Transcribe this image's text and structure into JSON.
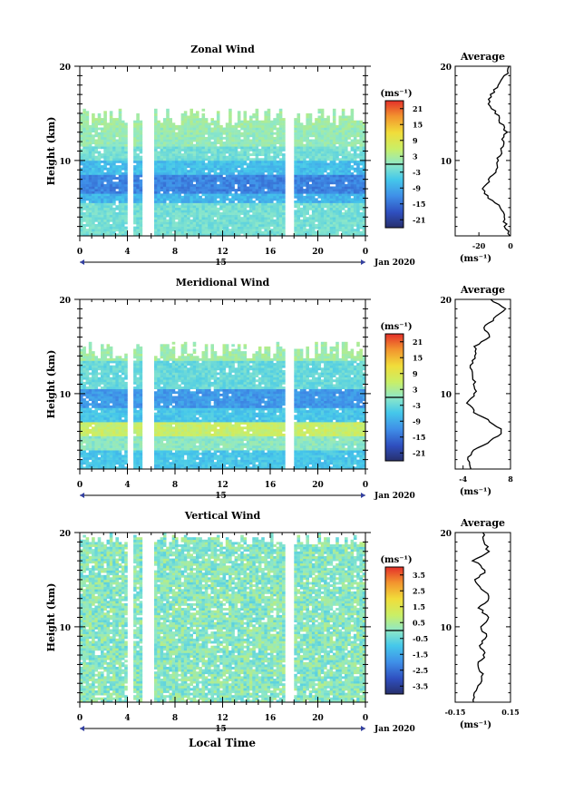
{
  "figure": {
    "xlabel": "Local Time",
    "date_label": "Jan 2020",
    "day_label": "15",
    "xticks": [
      "0",
      "4",
      "8",
      "12",
      "16",
      "20",
      "0"
    ],
    "ylabel": "Height (km)",
    "yticks": [
      "10",
      "20"
    ],
    "unit_label": "(ms⁻¹)",
    "avg_title": "Average",
    "avg_xunit": "(ms⁻¹)"
  },
  "chart_data": [
    {
      "type": "heatmap",
      "title": "Zonal Wind",
      "xlabel": "Local Time",
      "ylabel": "Height (km)",
      "xlim": [
        0,
        24
      ],
      "ylim": [
        2,
        20
      ],
      "colorbar_ticks": [
        "21",
        "15",
        "9",
        "3",
        "-3",
        "-9",
        "-15",
        "-21"
      ],
      "colorbar_range": [
        -24,
        24
      ],
      "gaps_hours": [
        [
          4.0,
          4.6
        ],
        [
          5.3,
          6.3
        ],
        [
          17.2,
          18.0
        ]
      ],
      "layers": [
        {
          "bottom": 2.0,
          "top": 5.5,
          "value": -2
        },
        {
          "bottom": 5.5,
          "top": 6.5,
          "value": -8
        },
        {
          "bottom": 6.5,
          "top": 8.5,
          "value": -13
        },
        {
          "bottom": 8.5,
          "top": 10.0,
          "value": -7
        },
        {
          "bottom": 10.0,
          "top": 11.5,
          "value": -2
        },
        {
          "bottom": 11.5,
          "top": 13.5,
          "value": 1
        }
      ],
      "average_profile": {
        "xlim": [
          -35,
          0
        ],
        "xticks": [
          "-20",
          "0"
        ],
        "height": [
          2,
          3,
          4,
          5,
          6,
          7,
          8,
          9,
          10,
          11,
          12,
          13,
          14,
          15,
          16,
          17,
          18,
          19,
          20
        ],
        "value": [
          -1,
          -3,
          -4,
          -6,
          -14,
          -17,
          -13,
          -9,
          -8,
          -6,
          -5,
          -3,
          -6,
          -9,
          -14,
          -12,
          -8,
          -3,
          -1
        ]
      }
    },
    {
      "type": "heatmap",
      "title": "Meridional Wind",
      "xlabel": "Local Time",
      "ylabel": "Height (km)",
      "xlim": [
        0,
        24
      ],
      "ylim": [
        2,
        20
      ],
      "colorbar_ticks": [
        "21",
        "15",
        "9",
        "3",
        "-3",
        "-9",
        "-15",
        "-21"
      ],
      "colorbar_range": [
        -24,
        24
      ],
      "gaps_hours": [
        [
          4.0,
          4.6
        ],
        [
          5.3,
          6.3
        ],
        [
          17.2,
          18.0
        ]
      ],
      "layers": [
        {
          "bottom": 2.0,
          "top": 4.0,
          "value": -6
        },
        {
          "bottom": 4.0,
          "top": 5.5,
          "value": 0
        },
        {
          "bottom": 5.5,
          "top": 7.0,
          "value": 6
        },
        {
          "bottom": 7.0,
          "top": 8.5,
          "value": -6
        },
        {
          "bottom": 8.5,
          "top": 10.5,
          "value": -11
        },
        {
          "bottom": 10.5,
          "top": 13.5,
          "value": -3
        }
      ],
      "average_profile": {
        "xlim": [
          -6,
          8
        ],
        "xticks": [
          "-4",
          "8"
        ],
        "height": [
          2,
          3,
          4,
          5,
          6,
          7,
          8,
          9,
          10,
          11,
          12,
          13,
          14,
          15,
          16,
          17,
          18,
          19,
          20
        ],
        "value": [
          -2,
          -3,
          -1,
          3,
          6,
          3,
          -1,
          -3,
          -1,
          -1,
          -2,
          -2,
          -1,
          -1,
          3,
          1,
          4,
          7,
          3
        ]
      }
    },
    {
      "type": "heatmap",
      "title": "Vertical Wind",
      "xlabel": "Local Time",
      "ylabel": "Height (km)",
      "xlim": [
        0,
        24
      ],
      "ylim": [
        2,
        20
      ],
      "colorbar_ticks": [
        "3.5",
        "2.5",
        "1.5",
        "0.5",
        "-0.5",
        "-1.5",
        "-2.5",
        "-3.5"
      ],
      "colorbar_range": [
        -4,
        4
      ],
      "gaps_hours": [
        [
          4.0,
          4.6
        ],
        [
          5.3,
          6.3
        ],
        [
          17.2,
          18.0
        ]
      ],
      "layers": [
        {
          "bottom": 2.0,
          "top": 20.0,
          "value": 0
        }
      ],
      "average_profile": {
        "xlim": [
          -0.15,
          0.15
        ],
        "xticks": [
          "-0.15",
          "0.15"
        ],
        "height": [
          2,
          3,
          4,
          5,
          6,
          7,
          8,
          9,
          10,
          11,
          12,
          13,
          14,
          15,
          16,
          17,
          18,
          19,
          20
        ],
        "value": [
          -0.06,
          -0.04,
          -0.02,
          0.0,
          -0.03,
          0.01,
          -0.02,
          0.02,
          -0.01,
          0.03,
          -0.02,
          0.04,
          0.0,
          -0.04,
          0.02,
          -0.05,
          0.03,
          0.01,
          0.0
        ]
      }
    }
  ]
}
